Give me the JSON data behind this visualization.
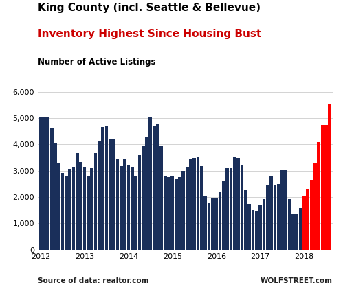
{
  "title1": "King County (incl. Seattle & Bellevue)",
  "title2": "Inventory Highest Since Housing Bust",
  "title3": "Number of Active Listings",
  "source_left": "Source of data: realtor.com",
  "source_right": "WOLFSTREET.com",
  "ylim": [
    0,
    6000
  ],
  "yticks": [
    0,
    1000,
    2000,
    3000,
    4000,
    5000,
    6000
  ],
  "bar_color_blue": "#1a2f5a",
  "bar_color_red": "#ff0000",
  "title1_color": "#000000",
  "title2_color": "#cc0000",
  "title3_color": "#000000",
  "source_color": "#222222",
  "grid_color": "#cccccc",
  "background_color": "#ffffff",
  "values": [
    5050,
    5050,
    5040,
    4620,
    4030,
    3310,
    2920,
    2820,
    3060,
    3140,
    3680,
    3320,
    3160,
    2810,
    3120,
    3680,
    4110,
    4650,
    4700,
    4230,
    4200,
    3440,
    3170,
    3450,
    3200,
    3150,
    2800,
    3600,
    3950,
    4270,
    5020,
    4720,
    4760,
    3970,
    2780,
    2760,
    2790,
    2680,
    2750,
    2990,
    3140,
    3470,
    3500,
    3530,
    3180,
    2030,
    1800,
    1980,
    1950,
    2210,
    2590,
    3120,
    3110,
    3520,
    3490,
    3200,
    2260,
    1740,
    1500,
    1440,
    1710,
    1920,
    2470,
    2800,
    2480,
    2500,
    3010,
    3040,
    1920,
    1380,
    1340,
    1590,
    2020,
    2310,
    2650,
    3310,
    4100,
    4740,
    4750,
    5560
  ],
  "red_start_index": 72,
  "x_tick_positions": [
    0,
    12,
    24,
    36,
    48,
    60,
    72
  ],
  "x_tick_labels": [
    "2012",
    "2013",
    "2014",
    "2015",
    "2016",
    "2017",
    "2018"
  ],
  "title1_fontsize": 11,
  "title2_fontsize": 11,
  "title3_fontsize": 8.5,
  "source_fontsize": 7.5,
  "tick_fontsize": 8
}
